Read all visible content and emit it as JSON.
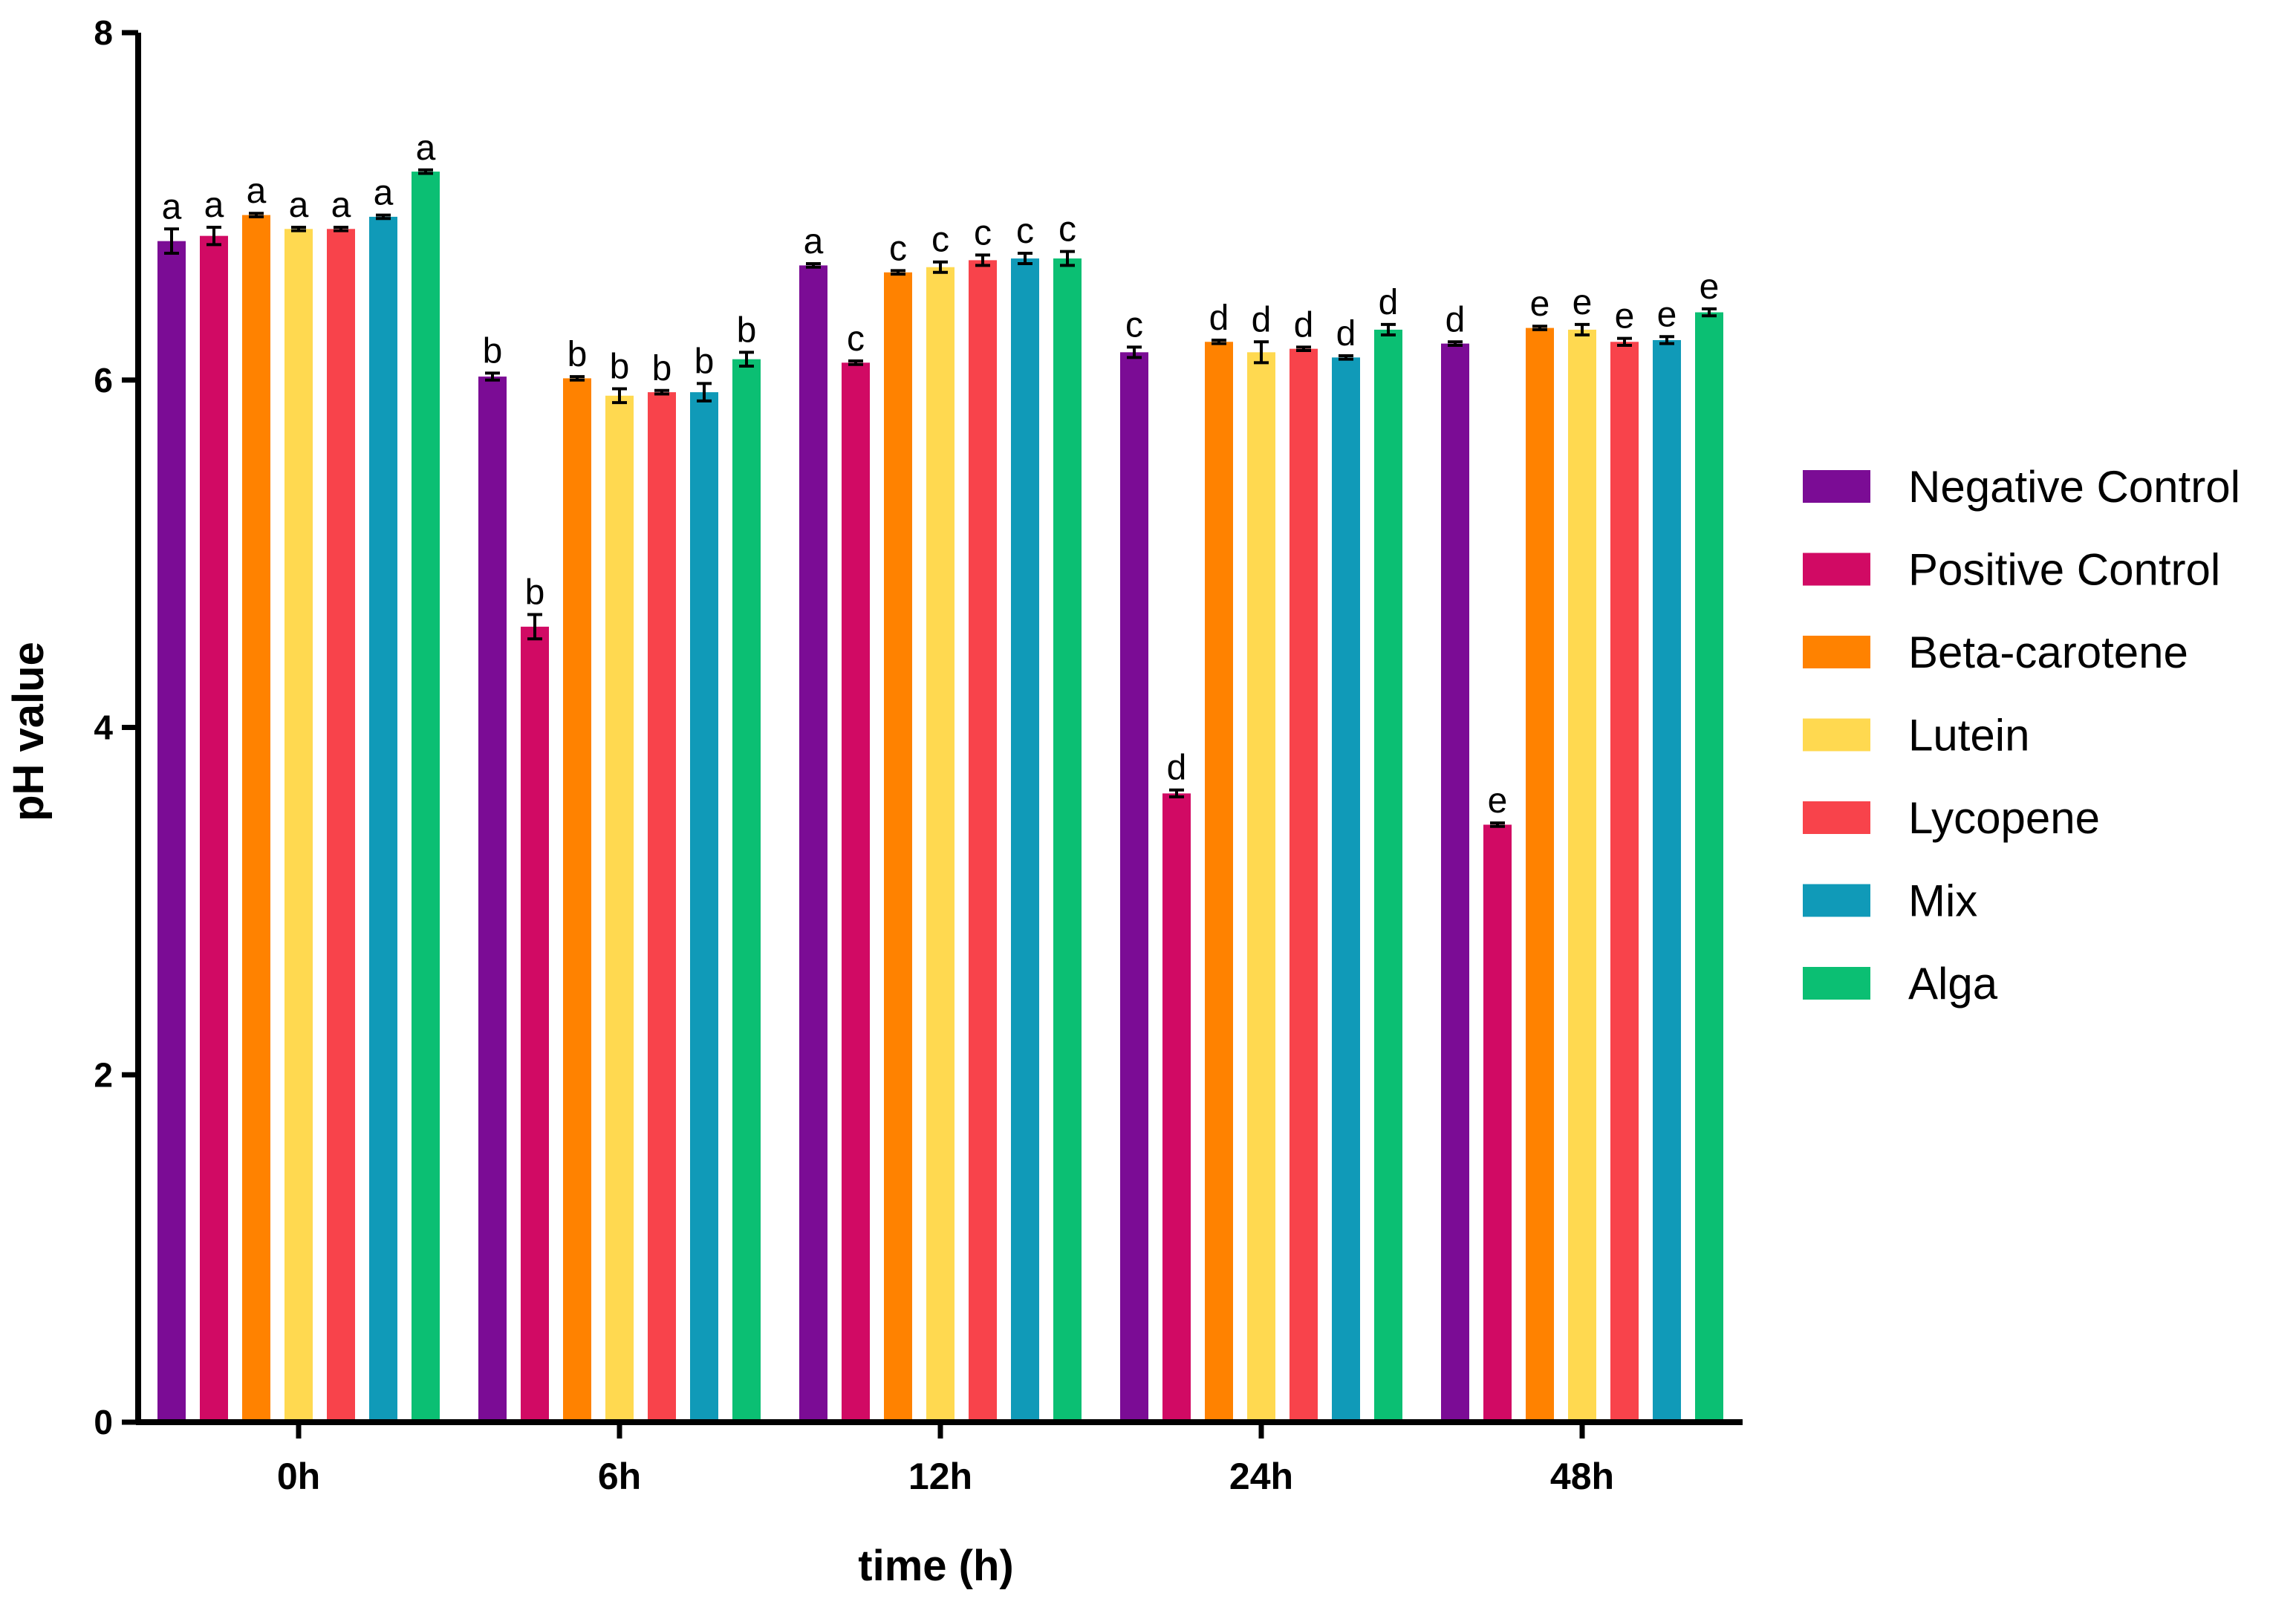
{
  "chart_data": {
    "type": "bar",
    "title": "",
    "xlabel": "time (h)",
    "ylabel": "pH value",
    "ylim": [
      0,
      8
    ],
    "yticks": [
      0,
      2,
      4,
      6,
      8
    ],
    "grid": false,
    "legend_position": "right",
    "categories": [
      "0h",
      "6h",
      "12h",
      "24h",
      "48h"
    ],
    "series": [
      {
        "name": "Negative Control",
        "color": "#7b0c95",
        "values": [
          6.8,
          6.02,
          6.66,
          6.16,
          6.21
        ],
        "errors": [
          0.07,
          0.02,
          0.01,
          0.03,
          0.01
        ],
        "letters": [
          "a",
          "b",
          "a",
          "c",
          "d"
        ]
      },
      {
        "name": "Positive Control",
        "color": "#d10a64",
        "values": [
          6.83,
          4.58,
          6.1,
          3.62,
          3.44
        ],
        "errors": [
          0.05,
          0.07,
          0.01,
          0.02,
          0.01
        ],
        "letters": [
          "a",
          "b",
          "c",
          "d",
          "e"
        ]
      },
      {
        "name": "Beta-carotene",
        "color": "#ff8200",
        "values": [
          6.95,
          6.01,
          6.62,
          6.22,
          6.3
        ],
        "errors": [
          0.01,
          0.01,
          0.01,
          0.01,
          0.01
        ],
        "letters": [
          "a",
          "b",
          "c",
          "d",
          "e"
        ]
      },
      {
        "name": "Lutein",
        "color": "#ffd950",
        "values": [
          6.87,
          5.91,
          6.65,
          6.16,
          6.29
        ],
        "errors": [
          0.01,
          0.04,
          0.03,
          0.06,
          0.03
        ],
        "letters": [
          "a",
          "b",
          "c",
          "d",
          "e"
        ]
      },
      {
        "name": "Lycopene",
        "color": "#f8434b",
        "values": [
          6.87,
          5.93,
          6.69,
          6.18,
          6.22
        ],
        "errors": [
          0.01,
          0.01,
          0.03,
          0.01,
          0.02
        ],
        "letters": [
          "a",
          "b",
          "c",
          "d",
          "e"
        ]
      },
      {
        "name": "Mix",
        "color": "#109ab8",
        "values": [
          6.94,
          5.93,
          6.7,
          6.13,
          6.23
        ],
        "errors": [
          0.01,
          0.05,
          0.03,
          0.01,
          0.02
        ],
        "letters": [
          "a",
          "b",
          "c",
          "d",
          "e"
        ]
      },
      {
        "name": "Alga",
        "color": "#0bbf73",
        "values": [
          7.2,
          6.12,
          6.7,
          6.29,
          6.39
        ],
        "errors": [
          0.01,
          0.04,
          0.04,
          0.03,
          0.02
        ],
        "letters": [
          "a",
          "b",
          "c",
          "d",
          "e"
        ]
      }
    ]
  }
}
